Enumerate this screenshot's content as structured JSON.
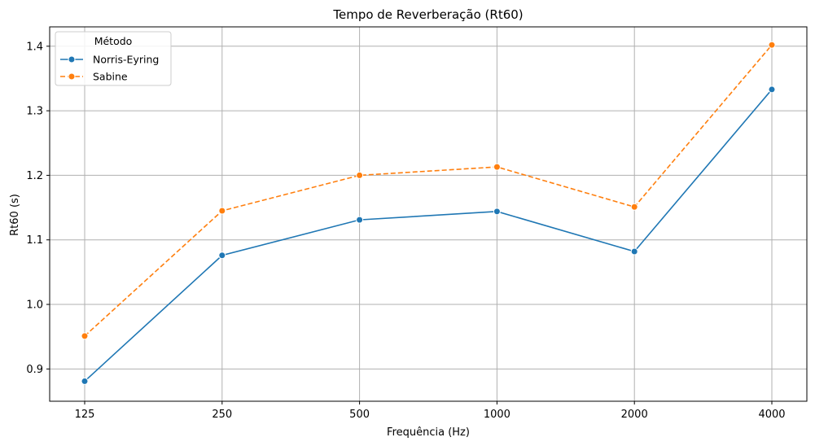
{
  "chart_data": {
    "type": "line",
    "title": "Tempo de Reverberação (Rt60)",
    "xlabel": "Frequência (Hz)",
    "ylabel": "Rt60 (s)",
    "categories": [
      "125",
      "250",
      "500",
      "1000",
      "2000",
      "4000"
    ],
    "ylim": [
      0.85,
      1.43
    ],
    "yticks": [
      "0.9",
      "1.0",
      "1.1",
      "1.2",
      "1.3",
      "1.4"
    ],
    "grid": true,
    "legend": {
      "title": "Método",
      "placement": "top-left"
    },
    "series": [
      {
        "name": "Norris-Eyring",
        "color": "#1f77b4",
        "dash": "solid",
        "values": [
          0.881,
          1.076,
          1.131,
          1.144,
          1.082,
          1.333
        ]
      },
      {
        "name": "Sabine",
        "color": "#ff7f0e",
        "dash": "dashed",
        "values": [
          0.951,
          1.145,
          1.2,
          1.213,
          1.151,
          1.402
        ]
      }
    ]
  }
}
